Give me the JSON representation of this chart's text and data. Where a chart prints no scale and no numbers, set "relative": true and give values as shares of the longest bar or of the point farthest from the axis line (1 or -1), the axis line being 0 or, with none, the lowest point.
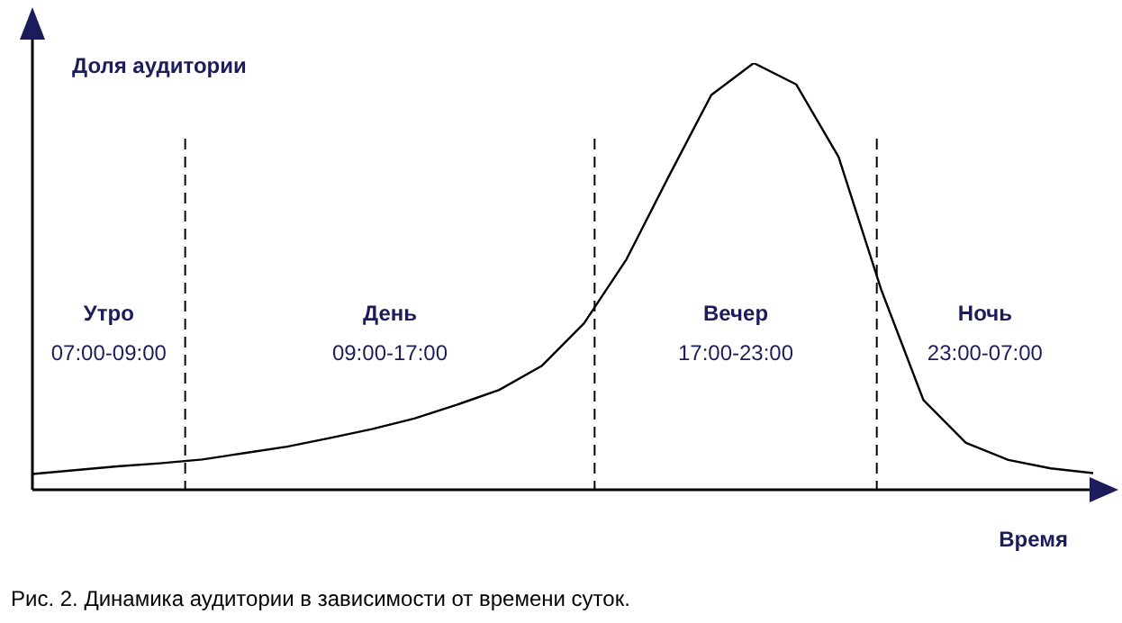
{
  "chart_data": {
    "type": "line",
    "relative": true,
    "tick_labels": false,
    "line_style": "solid",
    "ylabel": "Доля аудитории",
    "xlabel": "Время",
    "categories": [
      null,
      null,
      null,
      null,
      null,
      null,
      null,
      null,
      null,
      null,
      null,
      null,
      null,
      null,
      null,
      null,
      null,
      null,
      null,
      null,
      null,
      null,
      null,
      null,
      null,
      null
    ],
    "series": [
      {
        "color": "#000000",
        "values": [
          0.037,
          0.046,
          0.055,
          0.062,
          0.071,
          0.086,
          0.101,
          0.121,
          0.142,
          0.167,
          0.199,
          0.234,
          0.29,
          0.39,
          0.54,
          0.735,
          0.925,
          1.0,
          0.95,
          0.78,
          0.47,
          0.21,
          0.11,
          0.07,
          0.05,
          0.039
        ]
      }
    ],
    "annotations": [
      "Утро\n07:00-09:00",
      "День\n09:00-17:00",
      "Вечер\n17:00-23:00",
      "Ночь\n23:00-07:00",
      "Рис. 2. Динамика аудитории в зависимости от времени суток."
    ]
  }
}
